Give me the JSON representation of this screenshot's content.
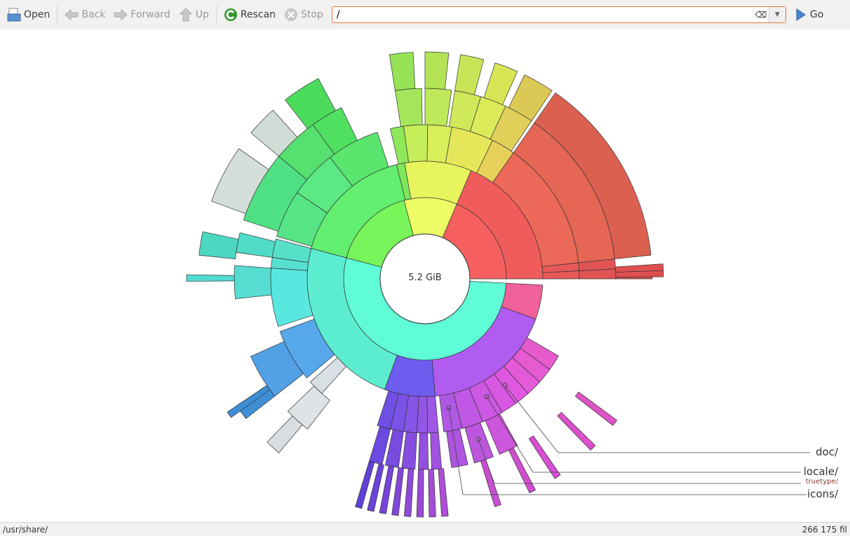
{
  "toolbar": {
    "open": "Open",
    "back": "Back",
    "forward": "Forward",
    "up": "Up",
    "rescan": "Rescan",
    "stop": "Stop",
    "location": "/",
    "go": "Go"
  },
  "chart": {
    "center_label": "5.2 GiB",
    "labels": [
      "doc/",
      "locale/",
      "truetype/",
      "icons/"
    ]
  },
  "status": {
    "path": "/usr/share/",
    "count": "266 175 fil"
  },
  "colors": {
    "location_border": "#e2713f"
  }
}
